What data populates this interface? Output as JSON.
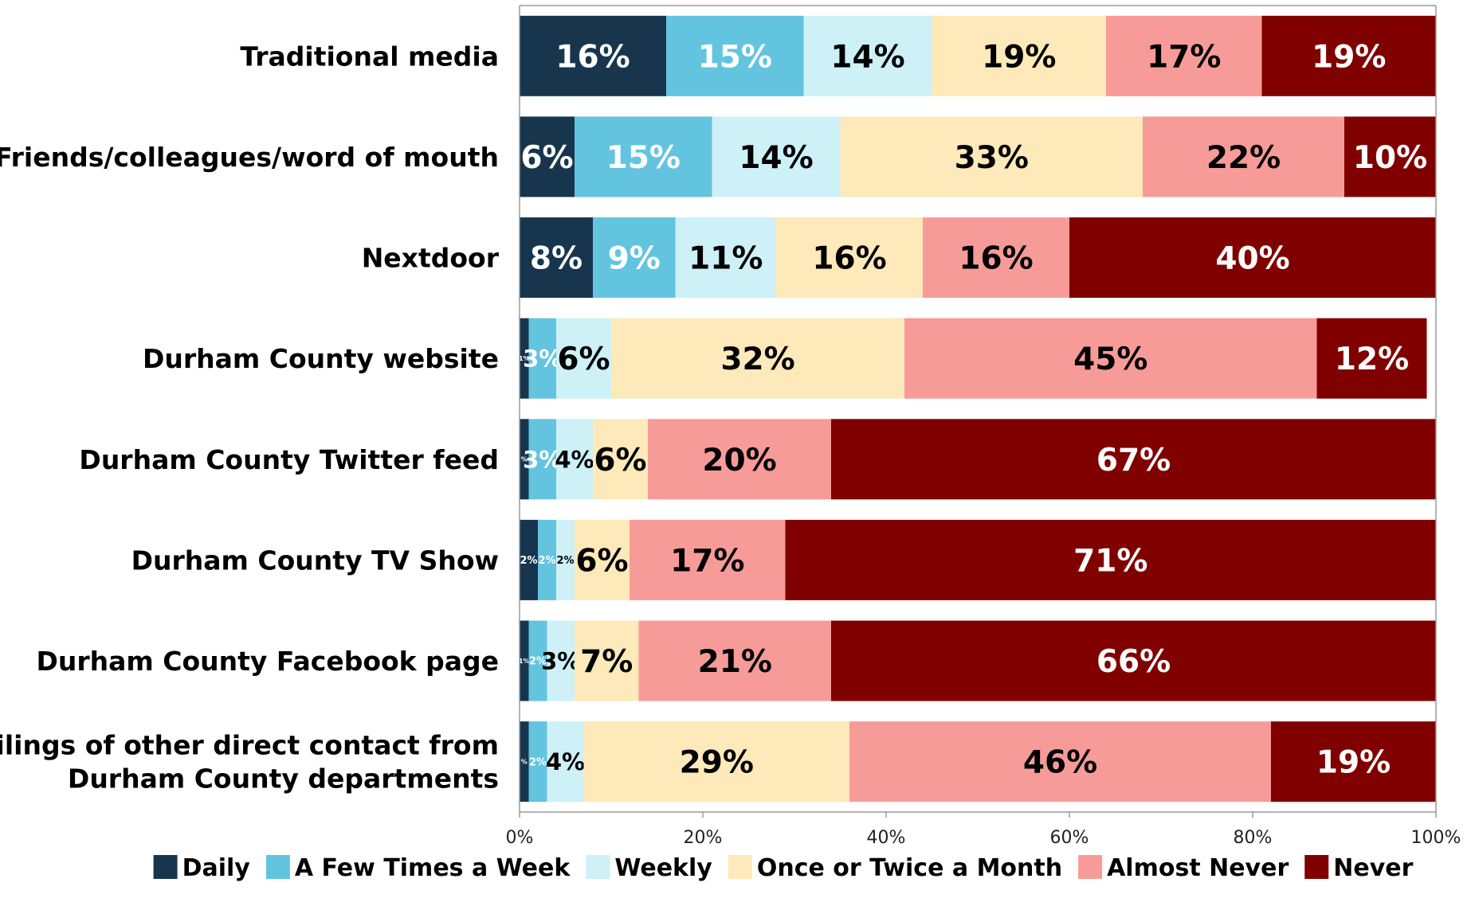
{
  "chart_data": {
    "type": "bar",
    "orientation": "horizontal",
    "stacked": true,
    "percent_stacked": true,
    "categories": [
      [
        "Traditional media"
      ],
      [
        "Friends/colleagues/word of mouth"
      ],
      [
        "Nextdoor"
      ],
      [
        "Durham County website"
      ],
      [
        "Durham County Twitter feed"
      ],
      [
        "Durham County TV Show"
      ],
      [
        "Durham County Facebook page"
      ],
      [
        "Mailings of other direct contact from",
        "Durham County departments"
      ]
    ],
    "series": [
      {
        "name": "Daily",
        "color": "#17364d",
        "label_color": "#ffffff",
        "values": [
          16,
          6,
          8,
          1,
          1,
          2,
          1,
          1
        ],
        "labels": [
          "16%",
          "6%",
          "8%",
          "1%",
          "%",
          "2%",
          "1%",
          "%"
        ]
      },
      {
        "name": "A Few Times a Week",
        "color": "#63c4e0",
        "label_color": "#ffffff",
        "values": [
          15,
          15,
          9,
          3,
          3,
          2,
          2,
          2
        ],
        "labels": [
          "15%",
          "15%",
          "9%",
          "3%",
          "3%",
          "2%",
          "2%",
          "2%"
        ]
      },
      {
        "name": "Weekly",
        "color": "#cdf1f7",
        "label_color": "#000000",
        "values": [
          14,
          14,
          11,
          6,
          4,
          2,
          3,
          4
        ],
        "labels": [
          "14%",
          "14%",
          "11%",
          "6%",
          "4%",
          "2%",
          "3%",
          "4%"
        ]
      },
      {
        "name": "Once or Twice a Month",
        "color": "#fde9b9",
        "label_color": "#000000",
        "values": [
          19,
          33,
          16,
          32,
          6,
          6,
          7,
          29
        ],
        "labels": [
          "19%",
          "33%",
          "16%",
          "32%",
          "6%",
          "6%",
          "7%",
          "29%"
        ]
      },
      {
        "name": "Almost Never",
        "color": "#f79b99",
        "label_color": "#000000",
        "values": [
          17,
          22,
          16,
          45,
          20,
          17,
          21,
          46
        ],
        "labels": [
          "17%",
          "22%",
          "16%",
          "45%",
          "20%",
          "17%",
          "21%",
          "46%"
        ]
      },
      {
        "name": "Never",
        "color": "#800000",
        "label_color": "#ffffff",
        "values": [
          19,
          10,
          40,
          12,
          67,
          71,
          66,
          19
        ],
        "labels": [
          "19%",
          "10%",
          "40%",
          "12%",
          "67%",
          "71%",
          "66%",
          "19%"
        ]
      }
    ],
    "x_axis": {
      "range": [
        0,
        100
      ],
      "ticks": [
        0,
        20,
        40,
        60,
        80,
        100
      ],
      "tick_labels": [
        "0%",
        "20%",
        "40%",
        "60%",
        "80%",
        "100%"
      ]
    },
    "grid": false,
    "legend": {
      "position": "bottom"
    }
  }
}
